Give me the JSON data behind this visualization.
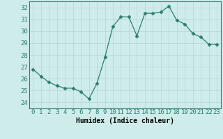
{
  "x": [
    0,
    1,
    2,
    3,
    4,
    5,
    6,
    7,
    8,
    9,
    10,
    11,
    12,
    13,
    14,
    15,
    16,
    17,
    18,
    19,
    20,
    21,
    22,
    23
  ],
  "y": [
    26.8,
    26.2,
    25.7,
    25.4,
    25.2,
    25.2,
    24.9,
    24.3,
    25.6,
    27.8,
    30.4,
    31.2,
    31.2,
    29.6,
    31.5,
    31.5,
    31.6,
    32.1,
    30.9,
    30.6,
    29.8,
    29.5,
    28.9,
    28.9
  ],
  "xlabel": "Humidex (Indice chaleur)",
  "ylim": [
    23.5,
    32.5
  ],
  "xlim": [
    -0.5,
    23.5
  ],
  "yticks": [
    24,
    25,
    26,
    27,
    28,
    29,
    30,
    31,
    32
  ],
  "xticks": [
    0,
    1,
    2,
    3,
    4,
    5,
    6,
    7,
    8,
    9,
    10,
    11,
    12,
    13,
    14,
    15,
    16,
    17,
    18,
    19,
    20,
    21,
    22,
    23
  ],
  "line_color": "#2d7d6e",
  "marker": "D",
  "marker_size": 2.5,
  "background_color": "#ceecea",
  "grid_color": "#b8dad7",
  "label_fontsize": 7,
  "tick_fontsize": 6.5
}
